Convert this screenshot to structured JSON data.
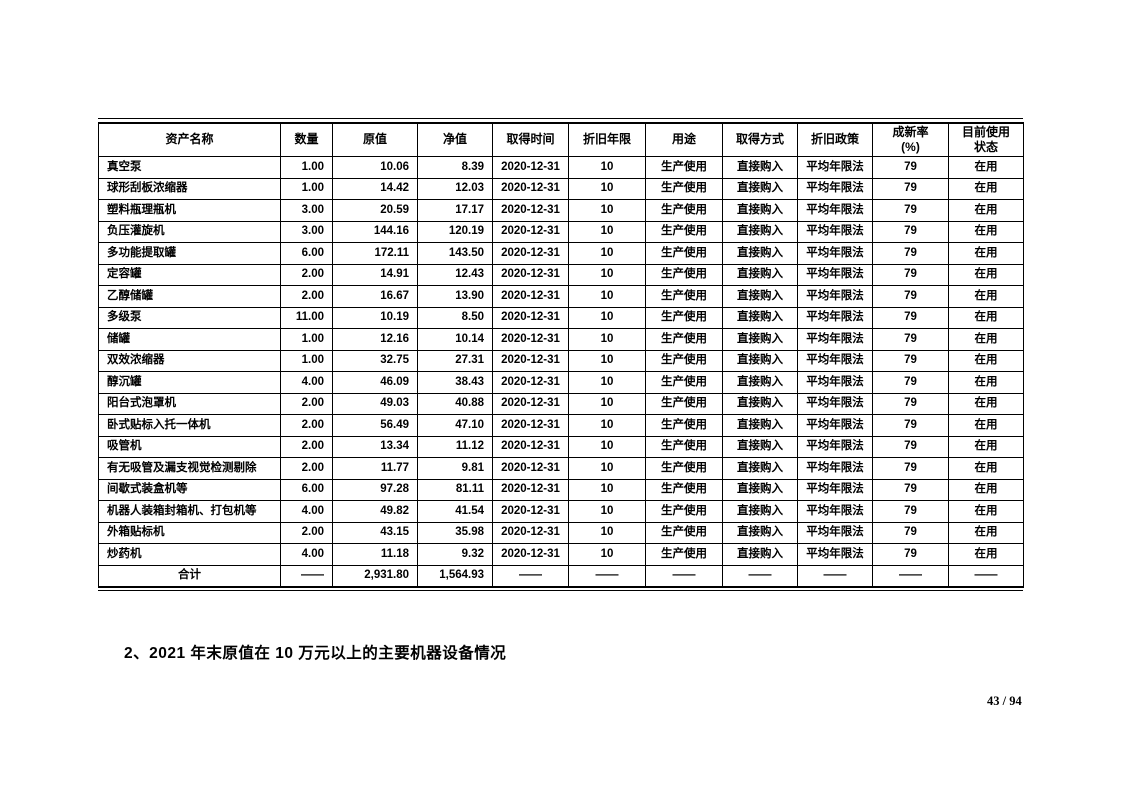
{
  "table": {
    "headers": [
      "资产名称",
      "数量",
      "原值",
      "净值",
      "取得时间",
      "折旧年限",
      "用途",
      "取得方式",
      "折旧政策",
      "成新率 (%)",
      "目前使用状态"
    ],
    "column_keys": [
      "asset-name",
      "quantity",
      "original-value",
      "net-value",
      "acquire-date",
      "depreciation-years",
      "usage",
      "acquire-method",
      "depreciation-policy",
      "newness-rate",
      "usage-status"
    ],
    "rows": [
      [
        "真空泵",
        "1.00",
        "10.06",
        "8.39",
        "2020-12-31",
        "10",
        "生产使用",
        "直接购入",
        "平均年限法",
        "79",
        "在用"
      ],
      [
        "球形刮板浓缩器",
        "1.00",
        "14.42",
        "12.03",
        "2020-12-31",
        "10",
        "生产使用",
        "直接购入",
        "平均年限法",
        "79",
        "在用"
      ],
      [
        "塑料瓶理瓶机",
        "3.00",
        "20.59",
        "17.17",
        "2020-12-31",
        "10",
        "生产使用",
        "直接购入",
        "平均年限法",
        "79",
        "在用"
      ],
      [
        "负压灌旋机",
        "3.00",
        "144.16",
        "120.19",
        "2020-12-31",
        "10",
        "生产使用",
        "直接购入",
        "平均年限法",
        "79",
        "在用"
      ],
      [
        "多功能提取罐",
        "6.00",
        "172.11",
        "143.50",
        "2020-12-31",
        "10",
        "生产使用",
        "直接购入",
        "平均年限法",
        "79",
        "在用"
      ],
      [
        "定容罐",
        "2.00",
        "14.91",
        "12.43",
        "2020-12-31",
        "10",
        "生产使用",
        "直接购入",
        "平均年限法",
        "79",
        "在用"
      ],
      [
        "乙醇储罐",
        "2.00",
        "16.67",
        "13.90",
        "2020-12-31",
        "10",
        "生产使用",
        "直接购入",
        "平均年限法",
        "79",
        "在用"
      ],
      [
        "多级泵",
        "11.00",
        "10.19",
        "8.50",
        "2020-12-31",
        "10",
        "生产使用",
        "直接购入",
        "平均年限法",
        "79",
        "在用"
      ],
      [
        "储罐",
        "1.00",
        "12.16",
        "10.14",
        "2020-12-31",
        "10",
        "生产使用",
        "直接购入",
        "平均年限法",
        "79",
        "在用"
      ],
      [
        "双效浓缩器",
        "1.00",
        "32.75",
        "27.31",
        "2020-12-31",
        "10",
        "生产使用",
        "直接购入",
        "平均年限法",
        "79",
        "在用"
      ],
      [
        "醇沉罐",
        "4.00",
        "46.09",
        "38.43",
        "2020-12-31",
        "10",
        "生产使用",
        "直接购入",
        "平均年限法",
        "79",
        "在用"
      ],
      [
        "阳台式泡罩机",
        "2.00",
        "49.03",
        "40.88",
        "2020-12-31",
        "10",
        "生产使用",
        "直接购入",
        "平均年限法",
        "79",
        "在用"
      ],
      [
        "卧式贴标入托一体机",
        "2.00",
        "56.49",
        "47.10",
        "2020-12-31",
        "10",
        "生产使用",
        "直接购入",
        "平均年限法",
        "79",
        "在用"
      ],
      [
        "吸管机",
        "2.00",
        "13.34",
        "11.12",
        "2020-12-31",
        "10",
        "生产使用",
        "直接购入",
        "平均年限法",
        "79",
        "在用"
      ],
      [
        "有无吸管及漏支视觉检测剔除",
        "2.00",
        "11.77",
        "9.81",
        "2020-12-31",
        "10",
        "生产使用",
        "直接购入",
        "平均年限法",
        "79",
        "在用"
      ],
      [
        "间歇式装盒机等",
        "6.00",
        "97.28",
        "81.11",
        "2020-12-31",
        "10",
        "生产使用",
        "直接购入",
        "平均年限法",
        "79",
        "在用"
      ],
      [
        "机器人装箱封箱机、打包机等",
        "4.00",
        "49.82",
        "41.54",
        "2020-12-31",
        "10",
        "生产使用",
        "直接购入",
        "平均年限法",
        "79",
        "在用"
      ],
      [
        "外箱贴标机",
        "2.00",
        "43.15",
        "35.98",
        "2020-12-31",
        "10",
        "生产使用",
        "直接购入",
        "平均年限法",
        "79",
        "在用"
      ],
      [
        "炒药机",
        "4.00",
        "11.18",
        "9.32",
        "2020-12-31",
        "10",
        "生产使用",
        "直接购入",
        "平均年限法",
        "79",
        "在用"
      ]
    ],
    "total_row": [
      "合计",
      "——",
      "2,931.80",
      "1,564.93",
      "——",
      "——",
      "——",
      "——",
      "——",
      "——",
      "——"
    ]
  },
  "section": {
    "caption": "2、2021 年末原值在 10 万元以上的主要机器设备情况"
  },
  "page": {
    "number_label": "43 / 94"
  }
}
